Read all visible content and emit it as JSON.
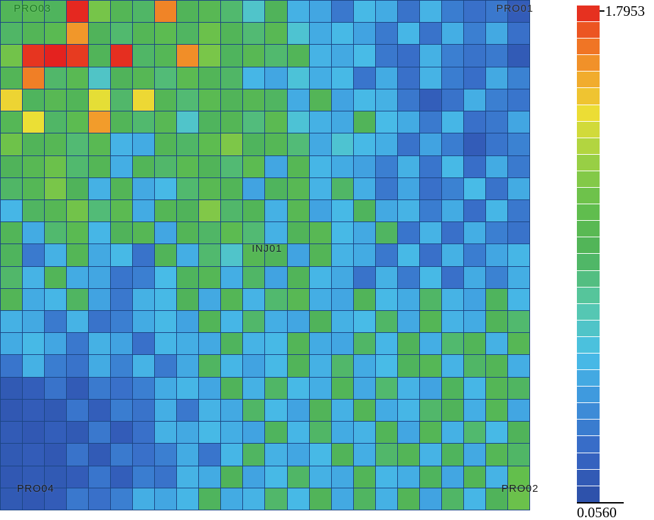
{
  "figure": {
    "background": "#ffffff",
    "grid_line_color": "#1c4584"
  },
  "chart_data": {
    "type": "heatmap",
    "title": "",
    "rows": 23,
    "cols": 24,
    "vmin": 0.056,
    "vmax": 1.7953,
    "colorbar": {
      "max_label": "1.7953",
      "min_label": "0.0560",
      "segments": 30,
      "position": "right"
    },
    "colormap_stops": [
      {
        "t": 0.0,
        "c": "#2c4ea6"
      },
      {
        "t": 0.1,
        "c": "#3766c4"
      },
      {
        "t": 0.22,
        "c": "#3f9bdf"
      },
      {
        "t": 0.3,
        "c": "#49c0e8"
      },
      {
        "t": 0.4,
        "c": "#57c8a8"
      },
      {
        "t": 0.5,
        "c": "#4fb35a"
      },
      {
        "t": 0.6,
        "c": "#63bf4c"
      },
      {
        "t": 0.7,
        "c": "#a3d243"
      },
      {
        "t": 0.78,
        "c": "#ecdf35"
      },
      {
        "t": 0.86,
        "c": "#f2a52c"
      },
      {
        "t": 0.93,
        "c": "#ef6a23"
      },
      {
        "t": 1.0,
        "c": "#e31f1f"
      }
    ],
    "wells": [
      {
        "name": "PRO03",
        "left_pct": 2.6,
        "top_pct": 0.5,
        "color": "#1d7a24"
      },
      {
        "name": "PRO01",
        "left_pct": 93.6,
        "top_pct": 0.5,
        "color": "#2b2b2b"
      },
      {
        "name": "INJ01",
        "left_pct": 47.5,
        "top_pct": 47.6,
        "color": "#17252e"
      },
      {
        "name": "PRO04",
        "left_pct": 3.2,
        "top_pct": 94.6,
        "color": "#1c1c1c"
      },
      {
        "name": "PRO02",
        "left_pct": 94.6,
        "top_pct": 94.6,
        "color": "#1c1c1c"
      }
    ],
    "values": [
      [
        0.95,
        0.99,
        0.92,
        1.78,
        1.15,
        0.97,
        0.9,
        1.62,
        0.94,
        1.0,
        0.88,
        0.66,
        0.93,
        0.52,
        0.48,
        0.3,
        0.55,
        0.5,
        0.28,
        0.53,
        0.32,
        0.27,
        0.3,
        0.16
      ],
      [
        0.9,
        0.96,
        1.02,
        1.58,
        0.93,
        0.88,
        0.97,
        1.04,
        0.91,
        1.12,
        0.95,
        0.87,
        1.0,
        0.64,
        0.5,
        0.55,
        0.47,
        0.31,
        0.54,
        0.28,
        0.51,
        0.33,
        0.49,
        0.27
      ],
      [
        1.14,
        1.76,
        1.79,
        1.75,
        0.94,
        1.77,
        0.9,
        0.98,
        1.6,
        1.16,
        0.92,
        1.0,
        0.88,
        0.95,
        0.53,
        0.49,
        0.56,
        0.3,
        0.26,
        0.52,
        0.33,
        0.28,
        0.31,
        0.15
      ],
      [
        0.96,
        1.63,
        0.89,
        1.01,
        0.67,
        0.93,
        0.99,
        0.86,
        1.03,
        0.95,
        0.9,
        0.54,
        0.48,
        0.62,
        0.51,
        0.55,
        0.29,
        0.5,
        0.27,
        0.53,
        0.32,
        0.26,
        0.49,
        0.34
      ],
      [
        1.44,
        0.92,
        1.0,
        0.95,
        1.4,
        0.89,
        1.43,
        0.97,
        0.87,
        1.02,
        0.94,
        0.99,
        0.91,
        0.5,
        0.96,
        0.47,
        0.55,
        0.52,
        0.3,
        0.17,
        0.28,
        0.51,
        0.33,
        0.29
      ],
      [
        0.98,
        1.41,
        0.9,
        1.04,
        1.57,
        0.95,
        0.88,
        1.0,
        0.66,
        0.92,
        0.97,
        0.85,
        1.03,
        0.63,
        0.52,
        0.49,
        0.94,
        0.56,
        0.5,
        0.31,
        0.54,
        0.27,
        0.3,
        0.48
      ],
      [
        1.13,
        0.94,
        0.99,
        0.87,
        1.01,
        0.53,
        0.5,
        0.96,
        0.9,
        1.05,
        1.17,
        0.92,
        0.98,
        0.86,
        0.49,
        0.64,
        0.55,
        0.51,
        0.28,
        0.47,
        0.32,
        0.16,
        0.29,
        0.34
      ],
      [
        0.93,
        1.0,
        1.12,
        0.88,
        0.97,
        0.51,
        0.95,
        0.89,
        1.02,
        0.94,
        0.87,
        1.04,
        0.48,
        0.99,
        0.54,
        0.5,
        0.46,
        0.33,
        0.52,
        0.29,
        0.55,
        0.26,
        0.5,
        0.31
      ],
      [
        0.9,
        0.98,
        1.16,
        0.93,
        0.52,
        0.96,
        0.49,
        0.55,
        0.88,
        1.01,
        0.95,
        0.47,
        0.92,
        1.0,
        0.53,
        0.9,
        0.51,
        0.3,
        0.48,
        0.27,
        0.34,
        0.56,
        0.28,
        0.5
      ],
      [
        0.54,
        0.91,
        0.99,
        1.14,
        0.86,
        1.03,
        0.5,
        0.97,
        0.93,
        1.18,
        0.89,
        0.95,
        0.52,
        1.0,
        0.47,
        0.55,
        0.92,
        0.49,
        0.53,
        0.32,
        0.5,
        0.26,
        0.54,
        0.3
      ],
      [
        0.95,
        0.5,
        0.88,
        1.02,
        0.54,
        0.93,
        0.99,
        0.48,
        0.96,
        0.9,
        1.04,
        0.87,
        0.52,
        0.94,
        1.0,
        0.55,
        0.49,
        0.91,
        0.29,
        0.53,
        0.27,
        0.51,
        0.33,
        0.28
      ],
      [
        0.92,
        0.31,
        0.52,
        0.97,
        0.49,
        0.55,
        0.28,
        0.94,
        0.51,
        0.88,
        0.66,
        0.99,
        0.93,
        0.47,
        0.96,
        0.53,
        0.5,
        0.3,
        0.55,
        0.27,
        0.52,
        0.32,
        0.48,
        0.54
      ],
      [
        0.89,
        0.53,
        0.95,
        0.5,
        0.48,
        0.29,
        0.33,
        0.56,
        0.92,
        0.98,
        0.51,
        0.9,
        0.47,
        0.94,
        0.54,
        0.49,
        0.28,
        0.52,
        0.31,
        0.55,
        0.27,
        0.5,
        0.34,
        0.51
      ],
      [
        0.96,
        0.5,
        0.54,
        0.91,
        0.47,
        0.3,
        0.52,
        0.55,
        0.93,
        0.49,
        0.97,
        0.53,
        0.88,
        1.0,
        0.51,
        0.48,
        0.94,
        0.55,
        0.5,
        0.9,
        0.53,
        0.47,
        0.92,
        0.54
      ],
      [
        0.52,
        0.49,
        0.31,
        0.53,
        0.28,
        0.33,
        0.5,
        0.55,
        0.47,
        0.95,
        0.54,
        0.89,
        0.51,
        0.48,
        0.93,
        0.52,
        0.56,
        0.9,
        0.49,
        0.97,
        0.53,
        0.5,
        0.94,
        0.88
      ],
      [
        0.5,
        0.55,
        0.48,
        0.3,
        0.52,
        0.47,
        0.27,
        0.54,
        0.51,
        0.49,
        0.92,
        0.53,
        0.55,
        0.96,
        0.5,
        0.48,
        0.9,
        0.54,
        0.93,
        0.51,
        0.88,
        0.95,
        0.52,
        0.99
      ],
      [
        0.29,
        0.52,
        0.32,
        0.28,
        0.5,
        0.34,
        0.53,
        0.31,
        0.49,
        0.91,
        0.54,
        0.47,
        0.55,
        0.94,
        0.52,
        0.89,
        0.5,
        0.56,
        0.92,
        0.98,
        0.53,
        0.9,
        0.96,
        0.51
      ],
      [
        0.14,
        0.17,
        0.28,
        0.15,
        0.31,
        0.27,
        0.33,
        0.5,
        0.54,
        0.48,
        0.93,
        0.52,
        0.9,
        0.55,
        0.51,
        0.95,
        0.49,
        0.88,
        0.53,
        0.47,
        0.92,
        0.54,
        0.97,
        0.91
      ],
      [
        0.13,
        0.16,
        0.14,
        0.29,
        0.17,
        0.32,
        0.28,
        0.51,
        0.3,
        0.53,
        0.49,
        0.9,
        0.55,
        0.47,
        0.94,
        0.52,
        0.96,
        0.5,
        0.54,
        0.89,
        0.93,
        0.51,
        0.98,
        0.48
      ],
      [
        0.15,
        0.13,
        0.17,
        0.14,
        0.3,
        0.16,
        0.27,
        0.52,
        0.49,
        0.55,
        0.51,
        0.47,
        0.92,
        0.54,
        0.9,
        0.5,
        0.53,
        0.95,
        0.48,
        0.97,
        0.52,
        0.88,
        0.55,
        0.93
      ],
      [
        0.14,
        0.16,
        0.13,
        0.28,
        0.15,
        0.31,
        0.27,
        0.33,
        0.5,
        0.29,
        0.54,
        0.91,
        0.52,
        0.48,
        0.55,
        0.94,
        0.51,
        0.89,
        0.96,
        0.53,
        0.92,
        0.49,
        0.98,
        0.9
      ],
      [
        0.13,
        0.15,
        0.14,
        0.16,
        0.29,
        0.17,
        0.32,
        0.28,
        0.53,
        0.5,
        0.93,
        0.47,
        0.55,
        0.9,
        0.52,
        0.49,
        0.95,
        0.54,
        0.51,
        0.92,
        0.48,
        0.96,
        0.53,
        1.1
      ],
      [
        0.14,
        0.13,
        0.16,
        0.3,
        0.27,
        0.33,
        0.51,
        0.48,
        0.54,
        0.92,
        0.5,
        0.53,
        0.89,
        0.55,
        0.94,
        0.49,
        0.91,
        0.52,
        0.96,
        0.47,
        0.9,
        0.54,
        0.93,
        1.12
      ]
    ]
  }
}
